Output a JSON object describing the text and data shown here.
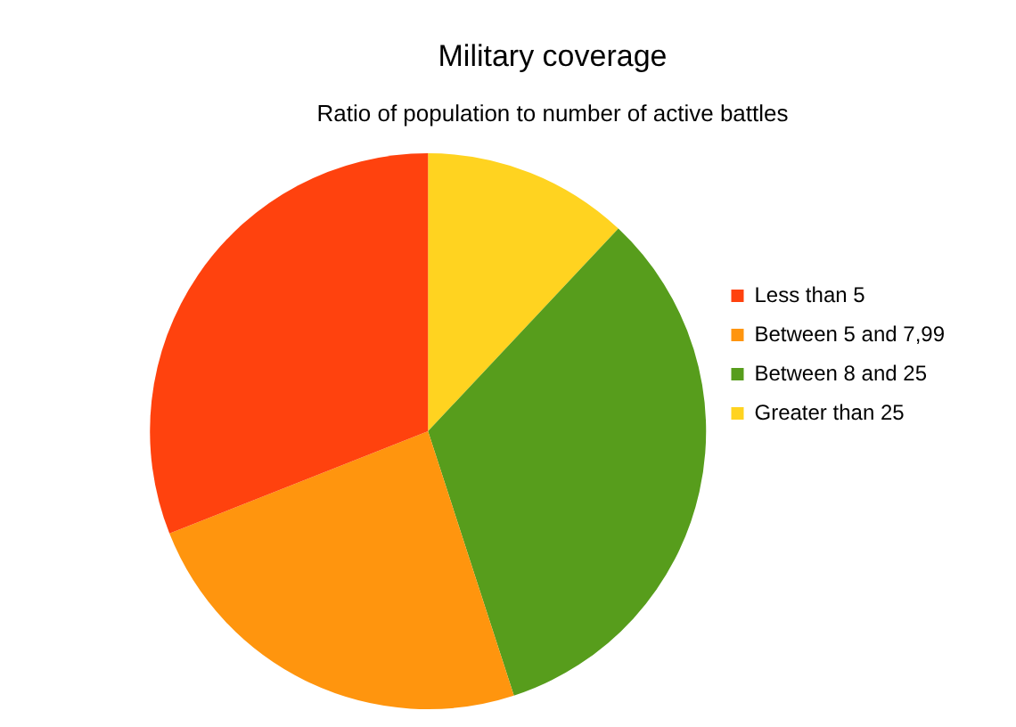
{
  "chart_data": {
    "type": "pie",
    "title": "Military coverage",
    "subtitle": "Ratio of population to number of active battles",
    "categories": [
      "Less than 5",
      "Between 5 and 7,99",
      "Between 8 and 25",
      "Greater than 25"
    ],
    "values": [
      31,
      24,
      33,
      12
    ],
    "colors": [
      "#ff420e",
      "#ff950e",
      "#579d1c",
      "#ffd320"
    ],
    "legend": "right"
  }
}
